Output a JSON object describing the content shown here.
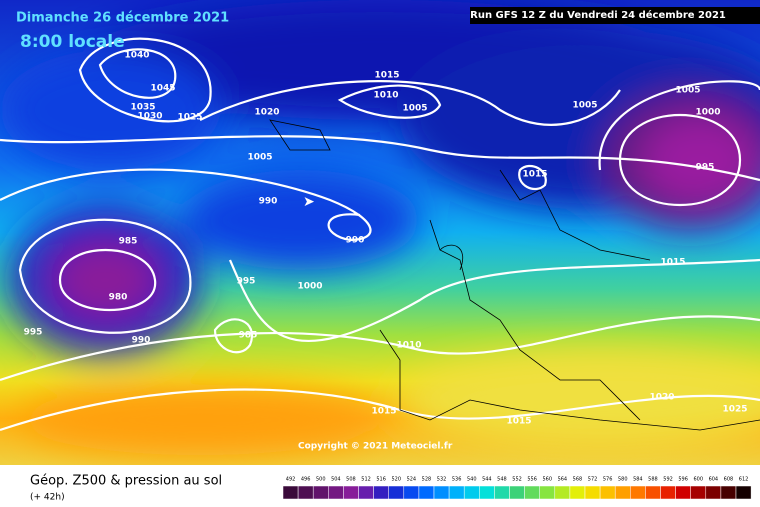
{
  "header": {
    "date": "Dimanche 26 décembre 2021",
    "time": "8:00 locale",
    "run": "Run GFS 12 Z du Vendredi 24 décembre 2021"
  },
  "copyright": "Copyright © 2021 Meteociel.fr",
  "footer": {
    "title": "Géop. Z500 & pression au sol",
    "lead": "(+ 42h)"
  },
  "scale": {
    "labels": [
      492,
      496,
      500,
      504,
      508,
      512,
      516,
      520,
      524,
      528,
      532,
      536,
      540,
      544,
      548,
      552,
      556,
      560,
      564,
      568,
      572,
      576,
      580,
      584,
      588,
      592,
      596,
      600,
      604,
      608,
      612
    ]
  },
  "isobars": {
    "labels": [
      1040,
      1045,
      1035,
      1030,
      1025,
      1020,
      1015,
      1010,
      1005,
      1005,
      990,
      990,
      985,
      980,
      995,
      990,
      995,
      985,
      1000,
      1010,
      1015,
      1015,
      1015,
      1005,
      1005,
      1000,
      995,
      1015,
      1020,
      1025
    ]
  }
}
